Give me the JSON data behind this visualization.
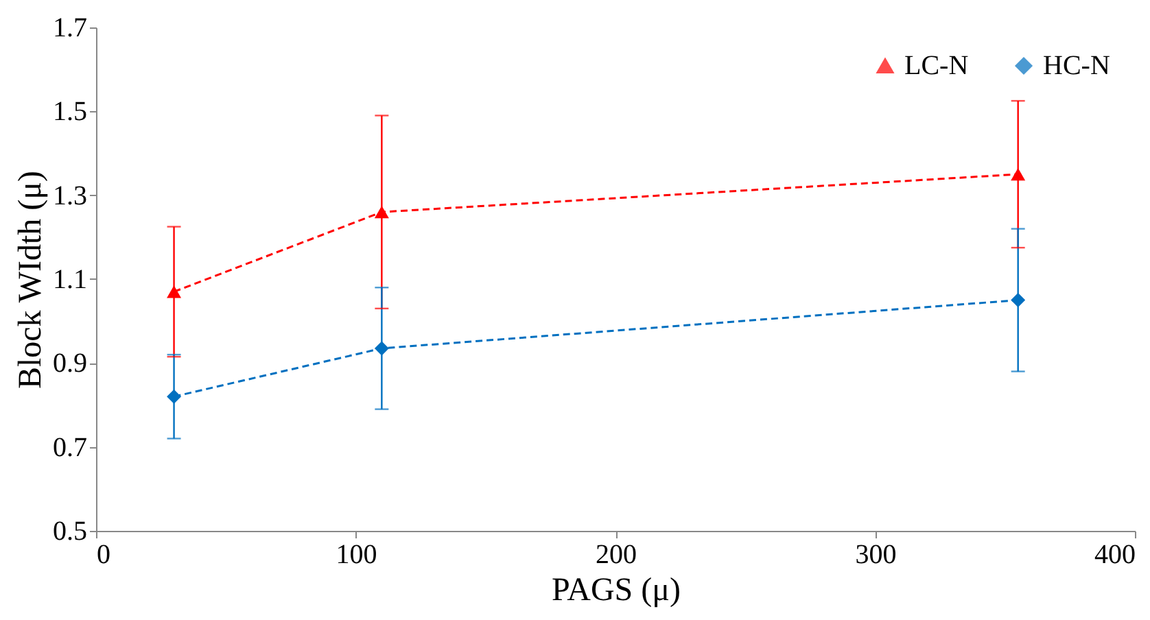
{
  "chart_data": {
    "type": "line",
    "xlabel": "PAGS (μ)",
    "ylabel": "Block WIdth (μ)",
    "xlim": [
      0,
      400
    ],
    "xticks": [
      0,
      100,
      200,
      300,
      400
    ],
    "ylim": [
      0.5,
      1.7
    ],
    "yticks": [
      0.5,
      0.7,
      0.9,
      1.1,
      1.3,
      1.5,
      1.7
    ],
    "grid": false,
    "legend": "top right",
    "line_style": "dashed",
    "series": [
      {
        "name": "LC-N",
        "color": "#ff0000",
        "marker": "triangle",
        "x": [
          30,
          110,
          355
        ],
        "values": [
          1.07,
          1.26,
          1.35
        ],
        "errors": [
          0.155,
          0.23,
          0.175
        ]
      },
      {
        "name": "HC-N",
        "color": "#0070c0",
        "marker": "diamond",
        "x": [
          30,
          110,
          355
        ],
        "values": [
          0.82,
          0.935,
          1.05
        ],
        "errors": [
          0.1,
          0.145,
          0.17
        ]
      }
    ]
  }
}
